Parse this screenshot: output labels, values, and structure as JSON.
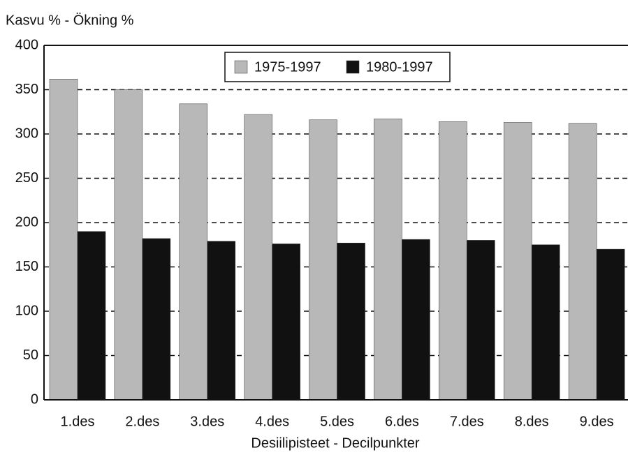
{
  "chart_data": {
    "type": "bar",
    "title": "Kasvu % - Ökning %",
    "x_label": "Desiilipisteet - Decilpunkter",
    "categories": [
      "1.des",
      "2.des",
      "3.des",
      "4.des",
      "5.des",
      "6.des",
      "7.des",
      "8.des",
      "9.des"
    ],
    "series": [
      {
        "name": "1975-1997",
        "color": "#b8b8b8",
        "values": [
          362,
          350,
          334,
          322,
          316,
          317,
          314,
          313,
          312
        ]
      },
      {
        "name": "1980-1997",
        "color": "#111111",
        "values": [
          190,
          182,
          179,
          176,
          177,
          181,
          180,
          175,
          170
        ]
      }
    ],
    "ylim": [
      0,
      400
    ],
    "yticks": [
      0,
      50,
      100,
      150,
      200,
      250,
      300,
      350,
      400
    ],
    "grid": true
  }
}
